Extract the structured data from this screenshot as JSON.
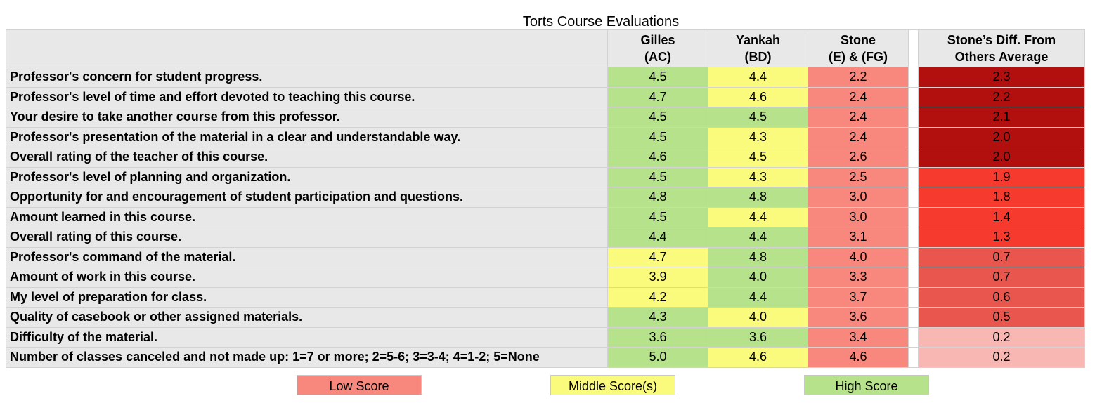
{
  "chart_data": {
    "type": "table",
    "title": "Torts Course Evaluations",
    "columns": [
      {
        "key": "label",
        "header": ""
      },
      {
        "key": "gilles",
        "header_line1": "Gilles",
        "header_line2": "(AC)"
      },
      {
        "key": "yankah",
        "header_line1": "Yankah",
        "header_line2": "(BD)"
      },
      {
        "key": "stone",
        "header_line1": "Stone",
        "header_line2": "(E) & (FG)"
      },
      {
        "key": "diff",
        "header_line1": "Stone’s Diff. From",
        "header_line2": "Others Average"
      }
    ],
    "rows": [
      {
        "label": "Professor's concern for student progress.",
        "gilles": "4.5",
        "yankah": "4.4",
        "stone": "2.2",
        "diff": "2.3",
        "colors": [
          "high",
          "mid",
          "low",
          "d1"
        ]
      },
      {
        "label": "Professor's level of time and effort devoted to teaching this course.",
        "gilles": "4.7",
        "yankah": "4.6",
        "stone": "2.4",
        "diff": "2.2",
        "colors": [
          "high",
          "mid",
          "low",
          "d1"
        ]
      },
      {
        "label": "Your desire to take another course from this professor.",
        "gilles": "4.5",
        "yankah": "4.5",
        "stone": "2.4",
        "diff": "2.1",
        "colors": [
          "high",
          "high",
          "low",
          "d1"
        ]
      },
      {
        "label": "Professor's presentation of the material in a clear and understandable way.",
        "gilles": "4.5",
        "yankah": "4.3",
        "stone": "2.4",
        "diff": "2.0",
        "colors": [
          "high",
          "mid",
          "low",
          "d1"
        ]
      },
      {
        "label": "Overall rating of the teacher of this course.",
        "gilles": "4.6",
        "yankah": "4.5",
        "stone": "2.6",
        "diff": "2.0",
        "colors": [
          "high",
          "mid",
          "low",
          "d1"
        ]
      },
      {
        "label": "Professor's level of planning and organization.",
        "gilles": "4.5",
        "yankah": "4.3",
        "stone": "2.5",
        "diff": "1.9",
        "colors": [
          "high",
          "mid",
          "low",
          "d2"
        ]
      },
      {
        "label": "Opportunity for and encouragement of student participation and questions.",
        "gilles": "4.8",
        "yankah": "4.8",
        "stone": "3.0",
        "diff": "1.8",
        "colors": [
          "high",
          "high",
          "low",
          "d2"
        ]
      },
      {
        "label": "Amount learned in this course.",
        "gilles": "4.5",
        "yankah": "4.4",
        "stone": "3.0",
        "diff": "1.4",
        "colors": [
          "high",
          "mid",
          "low",
          "d2"
        ]
      },
      {
        "label": "Overall rating of this course.",
        "gilles": "4.4",
        "yankah": "4.4",
        "stone": "3.1",
        "diff": "1.3",
        "colors": [
          "high",
          "high",
          "low",
          "d2"
        ]
      },
      {
        "label": "Professor's command of the material.",
        "gilles": "4.7",
        "yankah": "4.8",
        "stone": "4.0",
        "diff": "0.7",
        "colors": [
          "mid",
          "high",
          "low",
          "d3"
        ]
      },
      {
        "label": "Amount of work in this course.",
        "gilles": "3.9",
        "yankah": "4.0",
        "stone": "3.3",
        "diff": "0.7",
        "colors": [
          "mid",
          "high",
          "low",
          "d3"
        ]
      },
      {
        "label": "My level of preparation for class.",
        "gilles": "4.2",
        "yankah": "4.4",
        "stone": "3.7",
        "diff": "0.6",
        "colors": [
          "mid",
          "high",
          "low",
          "d3"
        ]
      },
      {
        "label": "Quality of casebook or other assigned materials.",
        "gilles": "4.3",
        "yankah": "4.0",
        "stone": "3.6",
        "diff": "0.5",
        "colors": [
          "high",
          "mid",
          "low",
          "d3"
        ]
      },
      {
        "label": "Difficulty of the material.",
        "gilles": "3.6",
        "yankah": "3.6",
        "stone": "3.4",
        "diff": "0.2",
        "colors": [
          "high",
          "high",
          "low",
          "d4"
        ]
      },
      {
        "label": "Number of classes canceled and not made up: 1=7 or more; 2=5-6; 3=3-4; 4=1-2; 5=None",
        "gilles": "5.0",
        "yankah": "4.6",
        "stone": "4.6",
        "diff": "0.2",
        "colors": [
          "high",
          "mid",
          "low",
          "d4"
        ]
      }
    ],
    "legend": [
      {
        "label": "Low Score",
        "color": "#f8877d"
      },
      {
        "label": "Middle Score(s)",
        "color": "#fafa7d"
      },
      {
        "label": "High Score",
        "color": "#b6e28c"
      }
    ],
    "palette": {
      "high": "#b6e28c",
      "mid": "#fafa7d",
      "low": "#f8877d",
      "d1": "#b1100e",
      "d2": "#f73a2e",
      "d3": "#e8564d",
      "d4": "#f8b7b2",
      "header_bg": "#e8e8e8"
    }
  }
}
